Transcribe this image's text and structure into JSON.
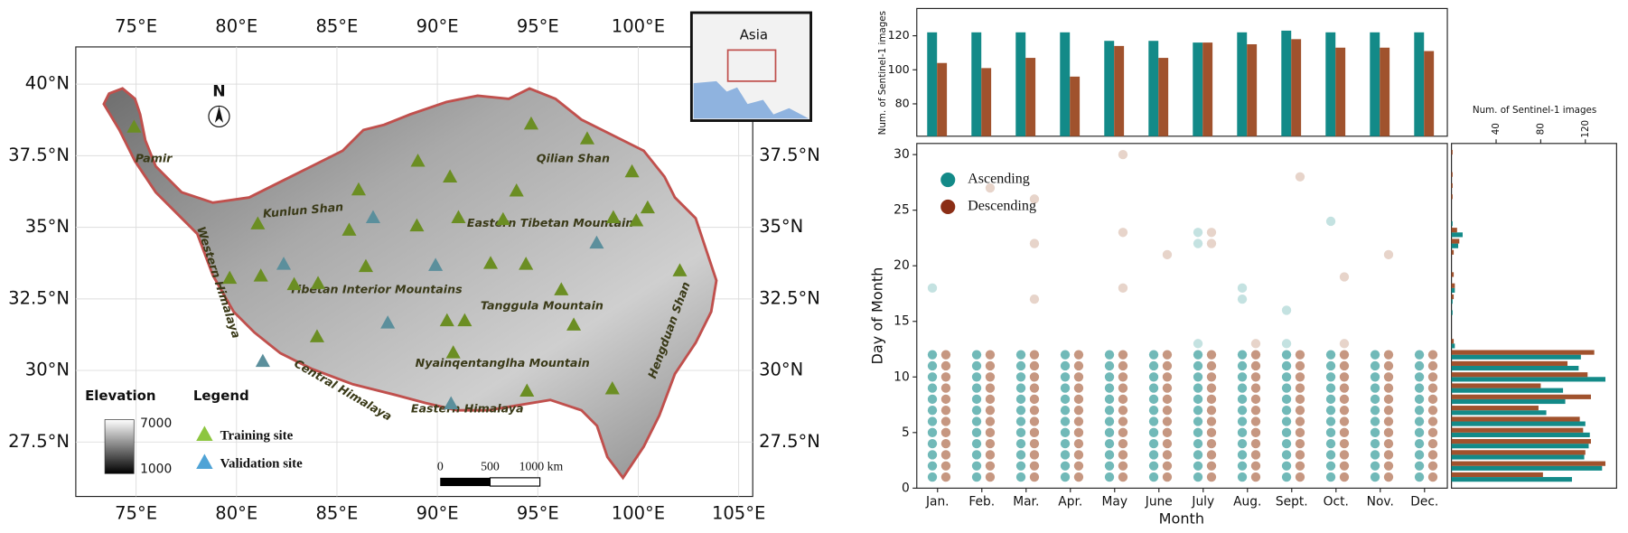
{
  "map": {
    "lonlim": [
      72,
      105.7
    ],
    "latlim": [
      25.6,
      41.3
    ],
    "lon_ticks": [
      {
        "value": 75,
        "label": "75°E"
      },
      {
        "value": 80,
        "label": "80°E"
      },
      {
        "value": 85,
        "label": "85°E"
      },
      {
        "value": 90,
        "label": "90°E"
      },
      {
        "value": 95,
        "label": "95°E"
      },
      {
        "value": 100,
        "label": "100°E"
      },
      {
        "value": 105,
        "label": "105°E"
      }
    ],
    "lat_ticks": [
      {
        "value": 40,
        "label": "40°N"
      },
      {
        "value": 37.5,
        "label": "37.5°N"
      },
      {
        "value": 35,
        "label": "35°N"
      },
      {
        "value": 32.5,
        "label": "32.5°N"
      },
      {
        "value": 30,
        "label": "30°N"
      },
      {
        "value": 27.5,
        "label": "27.5°N"
      }
    ],
    "north": "N",
    "inset_label": "Asia",
    "regions": [
      "Pamir",
      "Kunlun Shan",
      "Western Himalaya",
      "Tibetan Interior Mountains",
      "Qilian Shan",
      "Eastern Tibetan Mountain",
      "Tanggula Mountain",
      "Nyainqentanglha Mountain",
      "Central Himalaya",
      "Eastern Himalaya",
      "Hengduan Shan"
    ],
    "elevation_title": "Elevation",
    "elevation_max": "7000",
    "elevation_min": "1000",
    "legend_title": "Legend",
    "scale_labels": [
      "0",
      "500",
      "1000 km"
    ],
    "sites": [
      {
        "name": "Training site",
        "color": "#6b8e23",
        "legend_color": "#8dc63f",
        "lon": [
          74.9,
          94.67,
          97.46,
          89.03,
          90.63,
          99.69,
          86.08,
          93.94,
          81.06,
          91.05,
          88.98,
          93.27,
          98.76,
          100.47,
          99.9,
          85.61,
          86.44,
          79.66,
          81.21,
          82.87,
          84.06,
          92.65,
          94.41,
          96.17,
          90.48,
          91.36,
          96.79,
          84.01,
          90.79,
          98.71,
          94.46,
          102.07
        ],
        "lat": [
          38.51,
          38.62,
          38.1,
          37.32,
          36.77,
          36.95,
          36.32,
          36.28,
          35.13,
          35.35,
          35.06,
          35.28,
          35.35,
          35.69,
          35.24,
          34.91,
          33.64,
          33.23,
          33.31,
          33.01,
          33.05,
          33.75,
          33.72,
          32.83,
          31.75,
          31.75,
          31.6,
          31.19,
          30.63,
          29.37,
          29.29,
          33.49
        ]
      },
      {
        "name": "Validation site",
        "color": "#5b8f9c",
        "legend_color": "#4fa3d6",
        "lon": [
          86.8,
          82.35,
          89.91,
          97.93,
          87.53,
          81.31,
          90.68
        ],
        "lat": [
          35.35,
          33.72,
          33.68,
          34.46,
          31.67,
          30.33,
          28.85
        ]
      }
    ]
  },
  "chart_data": [
    {
      "type": "bar",
      "ylabel": "Num. of Sentinel-1 images",
      "ylim": [
        61,
        136
      ],
      "yticks": [
        80,
        100,
        120
      ],
      "series": [
        {
          "name": "Ascending",
          "color": "#138a88",
          "values": [
            122,
            122,
            122,
            122,
            117,
            117,
            116,
            122,
            123,
            122,
            122,
            122
          ]
        },
        {
          "name": "Descending",
          "color": "#a0522d",
          "values": [
            104,
            101,
            107,
            96,
            114,
            107,
            116,
            115,
            118,
            113,
            113,
            111
          ]
        }
      ]
    },
    {
      "type": "scatter",
      "xlabel": "Month",
      "ylabel": "Day of Month",
      "categories": [
        "Jan.",
        "Feb.",
        "Mar.",
        "Apr.",
        "May",
        "June",
        "July",
        "Aug.",
        "Sept.",
        "Oct.",
        "Nov.",
        "Dec."
      ],
      "ylim": [
        0,
        31
      ],
      "yticks": [
        0,
        5,
        10,
        15,
        20,
        25,
        30
      ],
      "series": [
        {
          "name": "Ascending",
          "color": "#138a88",
          "values": [
            [
              1,
              2,
              3,
              4,
              5,
              6,
              7,
              8,
              9,
              10,
              11,
              12,
              18
            ],
            [
              1,
              2,
              3,
              4,
              5,
              6,
              7,
              8,
              9,
              10,
              11,
              12
            ],
            [
              1,
              2,
              3,
              4,
              5,
              6,
              7,
              8,
              9,
              10,
              11,
              12
            ],
            [
              1,
              2,
              3,
              4,
              5,
              6,
              7,
              8,
              9,
              10,
              11,
              12
            ],
            [
              1,
              2,
              3,
              4,
              5,
              6,
              7,
              8,
              9,
              10,
              11,
              12
            ],
            [
              1,
              2,
              3,
              4,
              5,
              6,
              7,
              8,
              9,
              10,
              11,
              12
            ],
            [
              1,
              2,
              3,
              4,
              5,
              6,
              7,
              8,
              9,
              10,
              11,
              12,
              13,
              22,
              23
            ],
            [
              1,
              2,
              3,
              4,
              5,
              6,
              7,
              8,
              9,
              10,
              11,
              12,
              17,
              18
            ],
            [
              1,
              2,
              3,
              4,
              5,
              6,
              7,
              8,
              9,
              10,
              11,
              12,
              13,
              16
            ],
            [
              1,
              2,
              3,
              4,
              5,
              6,
              7,
              8,
              9,
              10,
              11,
              12,
              24
            ],
            [
              1,
              2,
              3,
              4,
              5,
              6,
              7,
              8,
              9,
              10,
              11,
              12
            ],
            [
              1,
              2,
              3,
              4,
              5,
              6,
              7,
              8,
              9,
              10,
              11,
              12
            ]
          ]
        },
        {
          "name": "Descending",
          "color": "#a0522d",
          "values": [
            [
              1,
              2,
              3,
              4,
              5,
              6,
              7,
              8,
              9,
              10,
              11,
              12
            ],
            [
              1,
              2,
              3,
              4,
              5,
              6,
              7,
              8,
              9,
              10,
              11,
              12,
              27
            ],
            [
              1,
              2,
              3,
              4,
              5,
              6,
              7,
              8,
              9,
              10,
              11,
              12,
              17,
              22,
              26
            ],
            [
              1,
              2,
              3,
              4,
              5,
              6,
              7,
              8,
              9,
              10,
              11,
              12
            ],
            [
              1,
              2,
              3,
              4,
              5,
              6,
              7,
              8,
              9,
              10,
              11,
              12,
              18,
              23,
              30
            ],
            [
              1,
              2,
              3,
              4,
              5,
              6,
              7,
              8,
              9,
              10,
              11,
              12,
              21
            ],
            [
              1,
              2,
              3,
              4,
              5,
              6,
              7,
              8,
              9,
              10,
              11,
              12,
              22,
              23
            ],
            [
              1,
              2,
              3,
              4,
              5,
              6,
              7,
              8,
              9,
              10,
              11,
              12,
              13
            ],
            [
              1,
              2,
              3,
              4,
              5,
              6,
              7,
              8,
              9,
              10,
              11,
              12,
              28
            ],
            [
              1,
              2,
              3,
              4,
              5,
              6,
              7,
              8,
              9,
              10,
              11,
              12,
              13,
              19
            ],
            [
              1,
              2,
              3,
              4,
              5,
              6,
              7,
              8,
              9,
              10,
              11,
              12,
              21
            ],
            [
              1,
              2,
              3,
              4,
              5,
              6,
              7,
              8,
              9,
              10,
              11,
              12
            ]
          ]
        }
      ]
    },
    {
      "type": "barh",
      "xlabel": "Num. of Sentinel-1 images",
      "xlim": [
        0,
        148
      ],
      "xticks": [
        40,
        80,
        120
      ],
      "y": [
        1,
        2,
        3,
        4,
        5,
        6,
        7,
        8,
        9,
        10,
        11,
        12,
        13,
        14,
        15,
        16,
        17,
        18,
        19,
        20,
        21,
        22,
        23,
        24,
        25,
        26,
        27,
        28,
        29,
        30,
        31
      ],
      "series": [
        {
          "name": "Ascending",
          "color": "#138a88",
          "values": [
            108,
            135,
            119,
            123,
            124,
            120,
            85,
            102,
            100,
            138,
            114,
            116,
            3,
            0,
            0,
            1,
            1,
            3,
            0,
            0,
            0,
            6,
            10,
            1,
            0,
            0,
            0,
            0,
            0,
            0,
            0
          ]
        },
        {
          "name": "Descending",
          "color": "#a0522d",
          "values": [
            82,
            138,
            120,
            125,
            118,
            115,
            78,
            125,
            80,
            122,
            104,
            128,
            2,
            0,
            0,
            0,
            2,
            3,
            2,
            0,
            2,
            7,
            5,
            0,
            0,
            1,
            1,
            1,
            0,
            1,
            0
          ]
        }
      ]
    }
  ]
}
